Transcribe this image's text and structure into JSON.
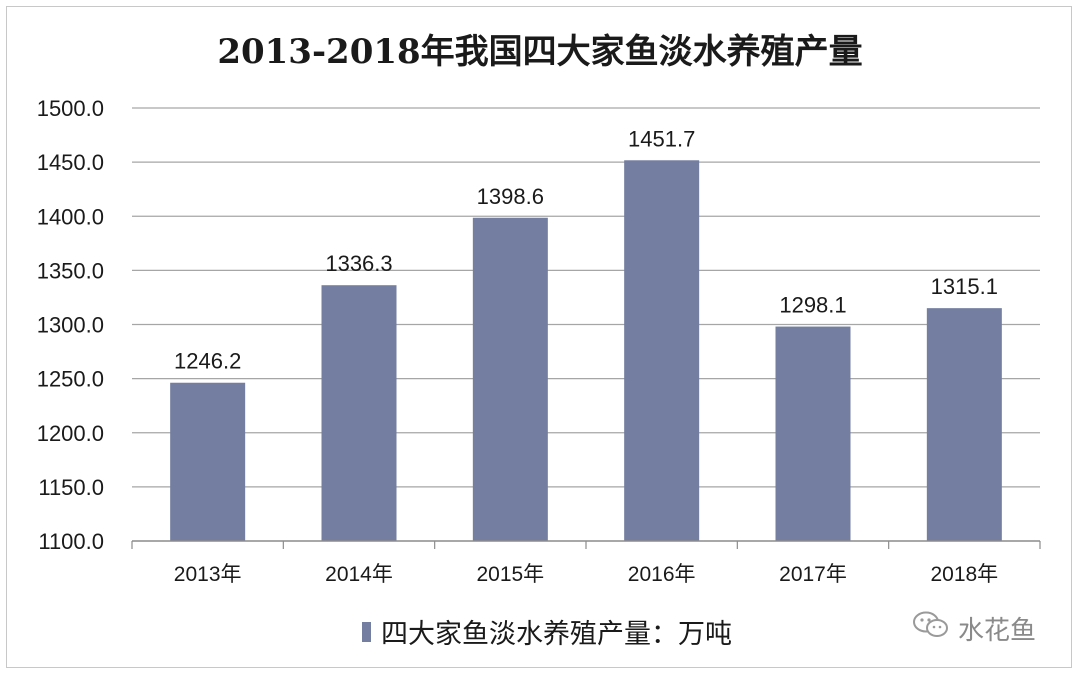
{
  "chart_data": {
    "type": "bar",
    "title": "2013-2018年我国四大家鱼淡水养殖产量",
    "categories": [
      "2013年",
      "2014年",
      "2015年",
      "2016年",
      "2017年",
      "2018年"
    ],
    "series": [
      {
        "name": "四大家鱼淡水养殖产量：万吨",
        "values": [
          1246.2,
          1336.3,
          1398.6,
          1451.7,
          1298.1,
          1315.1
        ],
        "labels": [
          "1246.2",
          "1336.3",
          "1398.6",
          "1451.7",
          "1298.1",
          "1315.1"
        ]
      }
    ],
    "ylim": [
      1100,
      1500
    ],
    "yticks": [
      1100,
      1150,
      1200,
      1250,
      1300,
      1350,
      1400,
      1450,
      1500
    ],
    "ytick_labels": [
      "1100.0",
      "1150.0",
      "1200.0",
      "1250.0",
      "1300.0",
      "1350.0",
      "1400.0",
      "1450.0",
      "1500.0"
    ],
    "grid": true,
    "legend_position": "bottom",
    "bar_color": "#737ea0",
    "grid_color": "#a6a6a6"
  },
  "watermark": {
    "text": "水花鱼",
    "icon": "wechat-bubble-icon"
  }
}
